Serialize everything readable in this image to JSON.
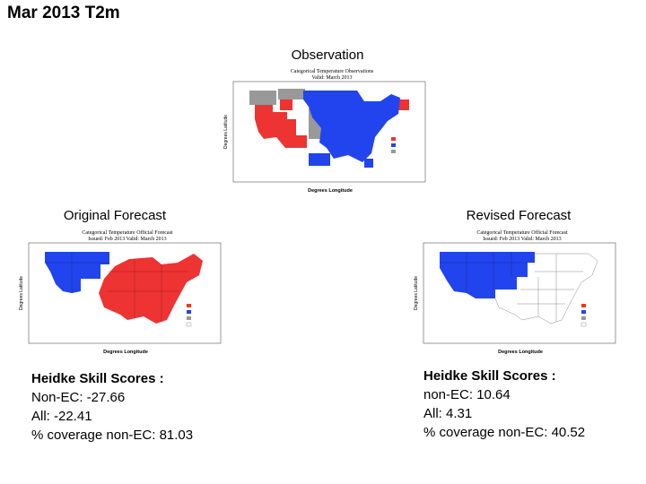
{
  "title": "Mar 2013 T2m",
  "panels": {
    "observation": {
      "caption": "Observation",
      "map_title_1": "Categorical Temperature Observations",
      "map_title_2": "Valid: March 2013"
    },
    "original": {
      "caption": "Original Forecast",
      "map_title_1": "Categorical Temperature Official Forecast",
      "map_title_2": "Issued: Feb 2013 Valid: March 2013"
    },
    "revised": {
      "caption": "Revised Forecast",
      "map_title_1": "Categorical Temperature Official Forecast",
      "map_title_2": "Issued: Feb 2013 Valid: March 2013"
    }
  },
  "axis": {
    "xlabel": "Degrees Longitude",
    "ylabel": "Degrees Latitude"
  },
  "legend_colors": {
    "above": "#ee3333",
    "below": "#2244ee",
    "near": "#999999",
    "ec": "#ffffff"
  },
  "scores": {
    "original": {
      "heading": "Heidke Skill Scores :",
      "line1": "Non-EC: -27.66",
      "line2": "All: -22.41",
      "line3": "% coverage non-EC: 81.03"
    },
    "revised": {
      "heading": "Heidke Skill Scores :",
      "line1": "non-EC: 10.64",
      "line2": "All: 4.31",
      "line3": "% coverage non-EC: 40.52"
    }
  }
}
